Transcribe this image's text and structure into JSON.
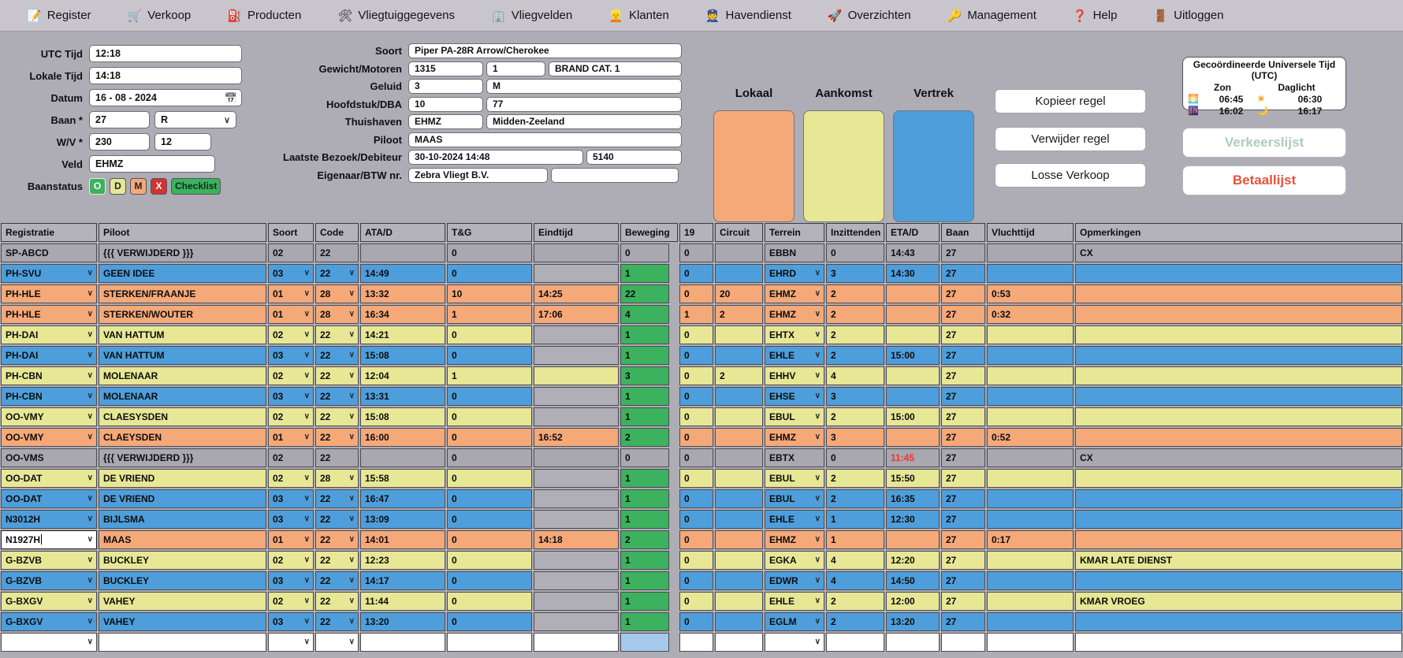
{
  "menu": {
    "items": [
      {
        "icon": "📝",
        "icon_name": "register-icon",
        "label": "Register"
      },
      {
        "icon": "🛒",
        "icon_name": "cart-icon",
        "label": "Verkoop"
      },
      {
        "icon": "⛽",
        "icon_name": "fuel-pump-icon",
        "label": "Producten"
      },
      {
        "icon": "🛠",
        "icon_name": "tools-icon",
        "label": "Vliegtuiggegevens"
      },
      {
        "icon": "🏢",
        "icon_name": "building-icon",
        "label": "Vliegvelden"
      },
      {
        "icon": "👱",
        "icon_name": "person-icon",
        "label": "Klanten"
      },
      {
        "icon": "👮",
        "icon_name": "officer-icon",
        "label": "Havendienst"
      },
      {
        "icon": "🚀",
        "icon_name": "rocket-icon",
        "label": "Overzichten"
      },
      {
        "icon": "🔑",
        "icon_name": "key-icon",
        "label": "Management"
      },
      {
        "icon": "❓",
        "icon_name": "question-icon",
        "label": "Help"
      },
      {
        "icon": "🚪",
        "icon_name": "door-icon",
        "label": "Uitloggen"
      }
    ]
  },
  "form_left": {
    "utc_label": "UTC Tijd",
    "utc_value": "12:18",
    "lokale_label": "Lokale Tijd",
    "lokale_value": "14:18",
    "datum_label": "Datum",
    "datum_value": "16 - 08 - 2024",
    "baan_label": "Baan *",
    "baan_value": "27",
    "baan_select": "R",
    "wv_label": "W/V *",
    "wv_value1": "230",
    "wv_value2": "12",
    "veld_label": "Veld",
    "veld_value": "EHMZ",
    "baanstatus_label": "Baanstatus",
    "status_o": "O",
    "status_d": "D",
    "status_m": "M",
    "status_x": "X",
    "status_checklist": "Checklist"
  },
  "form_middle": {
    "soort_label": "Soort",
    "soort_value": "Piper PA-28R Arrow/Cherokee",
    "gewicht_label": "Gewicht/Motoren",
    "gewicht_value": "1315",
    "motoren_value": "1",
    "brandcat_value": "BRAND CAT. 1",
    "geluid_label": "Geluid",
    "geluid_value": "3",
    "geluid_klasse": "M",
    "hoofdstuk_label": "Hoofdstuk/DBA",
    "hoofdstuk_value": "10",
    "dba_value": "77",
    "thuishaven_label": "Thuishaven",
    "thuishaven_code": "EHMZ",
    "thuishaven_naam": "Midden-Zeeland",
    "piloot_label": "Piloot",
    "piloot_value": "MAAS",
    "bezoek_label": "Laatste Bezoek/Debiteur",
    "bezoek_value": "30-10-2024 14:48",
    "debiteur_value": "5140",
    "eigenaar_label": "Eigenaar/BTW nr.",
    "eigenaar_value": "Zebra Vliegt B.V.",
    "btw_value": ""
  },
  "categories": {
    "lokaal_label": "Lokaal",
    "aankomst_label": "Aankomst",
    "vertrek_label": "Vertrek"
  },
  "actions": {
    "kopieer": "Kopieer regel",
    "verwijder": "Verwijder regel",
    "losse": "Losse Verkoop",
    "verkeerslijst": "Verkeerslijst",
    "betaallijst": "Betaallijst"
  },
  "utc_panel": {
    "title": "Gecoördineerde Universele Tijd (UTC)",
    "zon": "Zon",
    "daglicht": "Daglicht",
    "zon_op": "06:45",
    "zon_onder": "16:02",
    "daglicht_van": "06:30",
    "daglicht_tot": "16:17",
    "sunrise_icon": "🌅",
    "sunset_icon": "🌆",
    "sun_icon": "☀",
    "moon_icon": "🌙"
  },
  "colors": {
    "lokaal": "#F5A878",
    "aankomst": "#E7E795",
    "vertrek": "#4E9EDC",
    "row_blue": "#4E9EDC",
    "row_orange": "#F5A878",
    "row_yellow": "#E7E795",
    "row_gray": "#A9A7B0",
    "beweging_green": "#3CB25E",
    "beweging_lightblue": "#A5C9EC",
    "eta_red": "#FF2D2D"
  },
  "table": {
    "columns": [
      "Registratie",
      "Piloot",
      "Soort",
      "Code",
      "ATA/D",
      "T&G",
      "Eindtijd",
      "Beweging",
      "19",
      "Circuit",
      "Terrein",
      "Inzittenden",
      "ETA/D",
      "Baan",
      "Vluchttijd",
      "Opmerkingen"
    ],
    "rows": [
      {
        "reg": "SP-ABCD",
        "style": "gray",
        "dd": false,
        "pilot": "{{{ VERWIJDERD }}}",
        "soort": "02",
        "code": "22",
        "atad": "",
        "tg": "0",
        "eind": "",
        "bew": "0",
        "c19": "0",
        "circuit": "",
        "terrein": "EBBN",
        "tdd": false,
        "inz": "0",
        "etad": "14:43",
        "etad_red": false,
        "baan": "27",
        "vlucht": "",
        "opm": "CX"
      },
      {
        "reg": "PH-SVU",
        "style": "blue",
        "dd": true,
        "pilot": "GEEN IDEE",
        "soort": "03",
        "code": "22",
        "atad": "14:49",
        "tg": "0",
        "eind": "",
        "bew": "1",
        "c19": "0",
        "circuit": "",
        "terrein": "EHRD",
        "tdd": true,
        "inz": "3",
        "etad": "14:30",
        "etad_red": false,
        "baan": "27",
        "vlucht": "",
        "opm": ""
      },
      {
        "reg": "PH-HLE",
        "style": "orange",
        "dd": true,
        "pilot": "STERKEN/FRAANJE",
        "soort": "01",
        "code": "28",
        "atad": "13:32",
        "tg": "10",
        "eind": "14:25",
        "bew": "22",
        "c19": "0",
        "circuit": "20",
        "terrein": "EHMZ",
        "tdd": true,
        "inz": "2",
        "etad": "",
        "etad_red": false,
        "baan": "27",
        "vlucht": "0:53",
        "opm": ""
      },
      {
        "reg": "PH-HLE",
        "style": "orange",
        "dd": true,
        "pilot": "STERKEN/WOUTER",
        "soort": "01",
        "code": "28",
        "atad": "16:34",
        "tg": "1",
        "eind": "17:06",
        "bew": "4",
        "c19": "1",
        "circuit": "2",
        "terrein": "EHMZ",
        "tdd": true,
        "inz": "2",
        "etad": "",
        "etad_red": false,
        "baan": "27",
        "vlucht": "0:32",
        "opm": ""
      },
      {
        "reg": "PH-DAI",
        "style": "yellow",
        "dd": true,
        "pilot": "VAN HATTUM",
        "soort": "02",
        "code": "22",
        "atad": "14:21",
        "tg": "0",
        "eind": "",
        "bew": "1",
        "c19": "0",
        "circuit": "",
        "terrein": "EHTX",
        "tdd": true,
        "inz": "2",
        "etad": "",
        "etad_red": false,
        "baan": "27",
        "vlucht": "",
        "opm": ""
      },
      {
        "reg": "PH-DAI",
        "style": "blue",
        "dd": true,
        "pilot": "VAN HATTUM",
        "soort": "03",
        "code": "22",
        "atad": "15:08",
        "tg": "0",
        "eind": "",
        "bew": "1",
        "c19": "0",
        "circuit": "",
        "terrein": "EHLE",
        "tdd": true,
        "inz": "2",
        "etad": "15:00",
        "etad_red": false,
        "baan": "27",
        "vlucht": "",
        "opm": ""
      },
      {
        "reg": "PH-CBN",
        "style": "yellow",
        "dd": true,
        "pilot": "MOLENAAR",
        "soort": "02",
        "code": "22",
        "atad": "12:04",
        "tg": "1",
        "eind": "",
        "eind_rowcolor": true,
        "bew": "3",
        "c19": "0",
        "circuit": "2",
        "terrein": "EHHV",
        "tdd": true,
        "inz": "4",
        "etad": "",
        "etad_red": false,
        "baan": "27",
        "vlucht": "",
        "opm": ""
      },
      {
        "reg": "PH-CBN",
        "style": "blue",
        "dd": true,
        "pilot": "MOLENAAR",
        "soort": "03",
        "code": "22",
        "atad": "13:31",
        "tg": "0",
        "eind": "",
        "bew": "1",
        "c19": "0",
        "circuit": "",
        "terrein": "EHSE",
        "tdd": true,
        "inz": "3",
        "etad": "",
        "etad_red": false,
        "baan": "27",
        "vlucht": "",
        "opm": ""
      },
      {
        "reg": "OO-VMY",
        "style": "yellow",
        "dd": true,
        "pilot": "CLAESYSDEN",
        "soort": "02",
        "code": "22",
        "atad": "15:08",
        "tg": "0",
        "eind": "",
        "bew": "1",
        "c19": "0",
        "circuit": "",
        "terrein": "EBUL",
        "tdd": true,
        "inz": "2",
        "etad": "15:00",
        "etad_red": false,
        "baan": "27",
        "vlucht": "",
        "opm": ""
      },
      {
        "reg": "OO-VMY",
        "style": "orange",
        "dd": true,
        "pilot": "CLAEYSDEN",
        "soort": "01",
        "code": "22",
        "atad": "16:00",
        "tg": "0",
        "eind": "16:52",
        "bew": "2",
        "c19": "0",
        "circuit": "",
        "terrein": "EHMZ",
        "tdd": true,
        "inz": "3",
        "etad": "",
        "etad_red": false,
        "baan": "27",
        "vlucht": "0:52",
        "opm": ""
      },
      {
        "reg": "OO-VMS",
        "style": "gray",
        "dd": false,
        "pilot": "{{{ VERWIJDERD }}}",
        "soort": "02",
        "code": "22",
        "atad": "",
        "tg": "0",
        "eind": "",
        "bew": "0",
        "c19": "0",
        "circuit": "",
        "terrein": "EBTX",
        "tdd": false,
        "inz": "0",
        "etad": "11:45",
        "etad_red": true,
        "baan": "27",
        "vlucht": "",
        "opm": "CX"
      },
      {
        "reg": "OO-DAT",
        "style": "yellow",
        "dd": true,
        "pilot": "DE VRIEND",
        "soort": "02",
        "code": "28",
        "atad": "15:58",
        "tg": "0",
        "eind": "",
        "bew": "1",
        "c19": "0",
        "circuit": "",
        "terrein": "EBUL",
        "tdd": true,
        "inz": "2",
        "etad": "15:50",
        "etad_red": false,
        "baan": "27",
        "vlucht": "",
        "opm": ""
      },
      {
        "reg": "OO-DAT",
        "style": "blue",
        "dd": true,
        "pilot": "DE VRIEND",
        "soort": "03",
        "code": "22",
        "atad": "16:47",
        "tg": "0",
        "eind": "",
        "bew": "1",
        "c19": "0",
        "circuit": "",
        "terrein": "EBUL",
        "tdd": true,
        "inz": "2",
        "etad": "16:35",
        "etad_red": false,
        "baan": "27",
        "vlucht": "",
        "opm": ""
      },
      {
        "reg": "N3012H",
        "style": "blue",
        "dd": true,
        "pilot": "BIJLSMA",
        "soort": "03",
        "code": "22",
        "atad": "13:09",
        "tg": "0",
        "eind": "",
        "bew": "1",
        "c19": "0",
        "circuit": "",
        "terrein": "EHLE",
        "tdd": true,
        "inz": "1",
        "etad": "12:30",
        "etad_red": false,
        "baan": "27",
        "vlucht": "",
        "opm": ""
      },
      {
        "reg": "N1927H",
        "style": "orange",
        "reg_editing": true,
        "dd": true,
        "pilot": "MAAS",
        "soort": "01",
        "code": "22",
        "atad": "14:01",
        "tg": "0",
        "eind": "14:18",
        "bew": "2",
        "c19": "0",
        "circuit": "",
        "terrein": "EHMZ",
        "tdd": true,
        "inz": "1",
        "etad": "",
        "etad_red": false,
        "baan": "27",
        "vlucht": "0:17",
        "opm": ""
      },
      {
        "reg": "G-BZVB",
        "style": "yellow",
        "dd": true,
        "pilot": "BUCKLEY",
        "soort": "02",
        "code": "22",
        "atad": "12:23",
        "tg": "0",
        "eind": "",
        "bew": "1",
        "c19": "0",
        "circuit": "",
        "terrein": "EGKA",
        "tdd": true,
        "inz": "4",
        "etad": "12:20",
        "etad_red": false,
        "baan": "27",
        "vlucht": "",
        "opm": "KMAR LATE DIENST"
      },
      {
        "reg": "G-BZVB",
        "style": "blue",
        "dd": true,
        "pilot": "BUCKLEY",
        "soort": "03",
        "code": "22",
        "atad": "14:17",
        "tg": "0",
        "eind": "",
        "bew": "1",
        "c19": "0",
        "circuit": "",
        "terrein": "EDWR",
        "tdd": true,
        "inz": "4",
        "etad": "14:50",
        "etad_red": false,
        "baan": "27",
        "vlucht": "",
        "opm": ""
      },
      {
        "reg": "G-BXGV",
        "style": "yellow",
        "dd": true,
        "pilot": "VAHEY",
        "soort": "02",
        "code": "22",
        "atad": "11:44",
        "tg": "0",
        "eind": "",
        "bew": "1",
        "c19": "0",
        "circuit": "",
        "terrein": "EHLE",
        "tdd": true,
        "inz": "2",
        "etad": "12:00",
        "etad_red": false,
        "baan": "27",
        "vlucht": "",
        "opm": "KMAR VROEG"
      },
      {
        "reg": "G-BXGV",
        "style": "blue",
        "dd": true,
        "pilot": "VAHEY",
        "soort": "03",
        "code": "22",
        "atad": "13:20",
        "tg": "0",
        "eind": "",
        "bew": "1",
        "c19": "0",
        "circuit": "",
        "terrein": "EGLM",
        "tdd": true,
        "inz": "2",
        "etad": "13:20",
        "etad_red": false,
        "baan": "27",
        "vlucht": "",
        "opm": ""
      },
      {
        "reg": "",
        "style": "empty",
        "dd": true,
        "pilot": "",
        "soort": "",
        "code": "",
        "atad": "",
        "tg": "",
        "eind": "",
        "bew": "",
        "c19": "",
        "circuit": "",
        "terrein": "",
        "tdd": true,
        "inz": "",
        "etad": "",
        "etad_red": false,
        "baan": "",
        "vlucht": "",
        "opm": ""
      }
    ]
  }
}
